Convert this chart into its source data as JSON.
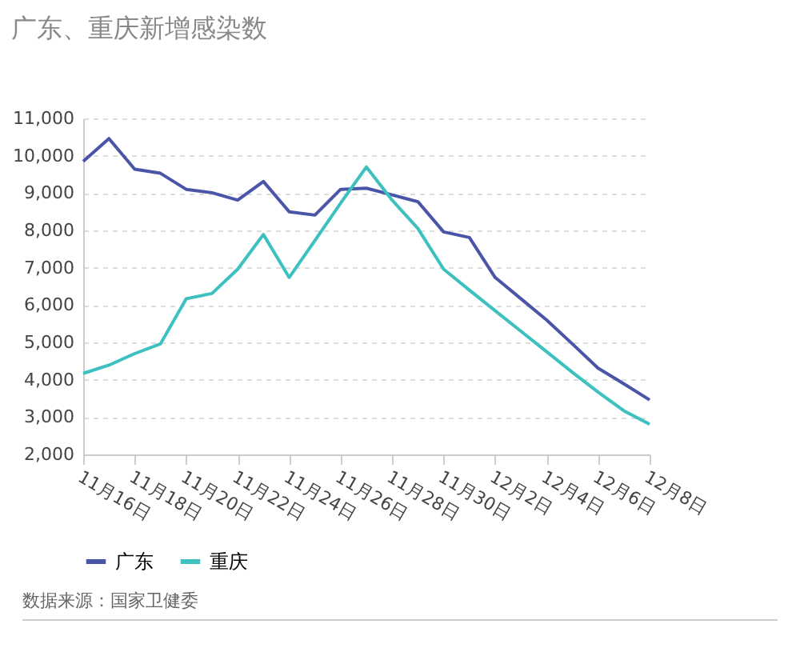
{
  "chart_data": {
    "type": "line",
    "title": "广东、重庆新增感染数",
    "categories": [
      "11月16日",
      null,
      "11月18日",
      null,
      "11月20日",
      null,
      "11月22日",
      null,
      "11月24日",
      null,
      "11月26日",
      null,
      "11月28日",
      null,
      "11月30日",
      null,
      "12月2日",
      null,
      "12月4日",
      null,
      "12月6日",
      null,
      "12月8日"
    ],
    "series": [
      {
        "name": "广东",
        "color": "#4b55a8",
        "values": [
          9850,
          10460,
          9640,
          9530,
          9100,
          9010,
          8810,
          9310,
          8500,
          8410,
          9100,
          9130,
          8950,
          8770,
          7960,
          7810,
          6740,
          6170,
          5600,
          4960,
          4310,
          3890,
          3460
        ]
      },
      {
        "name": "重庆",
        "color": "#3cc0c0",
        "values": [
          4170,
          4390,
          4700,
          4960,
          6170,
          6310,
          6960,
          7890,
          6740,
          7730,
          8730,
          9700,
          8810,
          8050,
          6960,
          6400,
          5850,
          5300,
          4750,
          4200,
          3670,
          3170,
          2810
        ]
      }
    ],
    "ylim": [
      2000,
      11000
    ],
    "yticks": [
      {
        "value": 2000,
        "label": "2,000"
      },
      {
        "value": 3000,
        "label": "3,000"
      },
      {
        "value": 4000,
        "label": "4,000"
      },
      {
        "value": 5000,
        "label": "5,000"
      },
      {
        "value": 6000,
        "label": "6,000"
      },
      {
        "value": 7000,
        "label": "7,000"
      },
      {
        "value": 8000,
        "label": "8,000"
      },
      {
        "value": 9000,
        "label": "9,000"
      },
      {
        "value": 10000,
        "label": "10,000"
      },
      {
        "value": 11000,
        "label": "11,000"
      }
    ],
    "grid": "y",
    "legend": "bottom",
    "marker": "none",
    "line_style": "solid",
    "annotations": [
      "数据来源：国家卫健委"
    ]
  }
}
